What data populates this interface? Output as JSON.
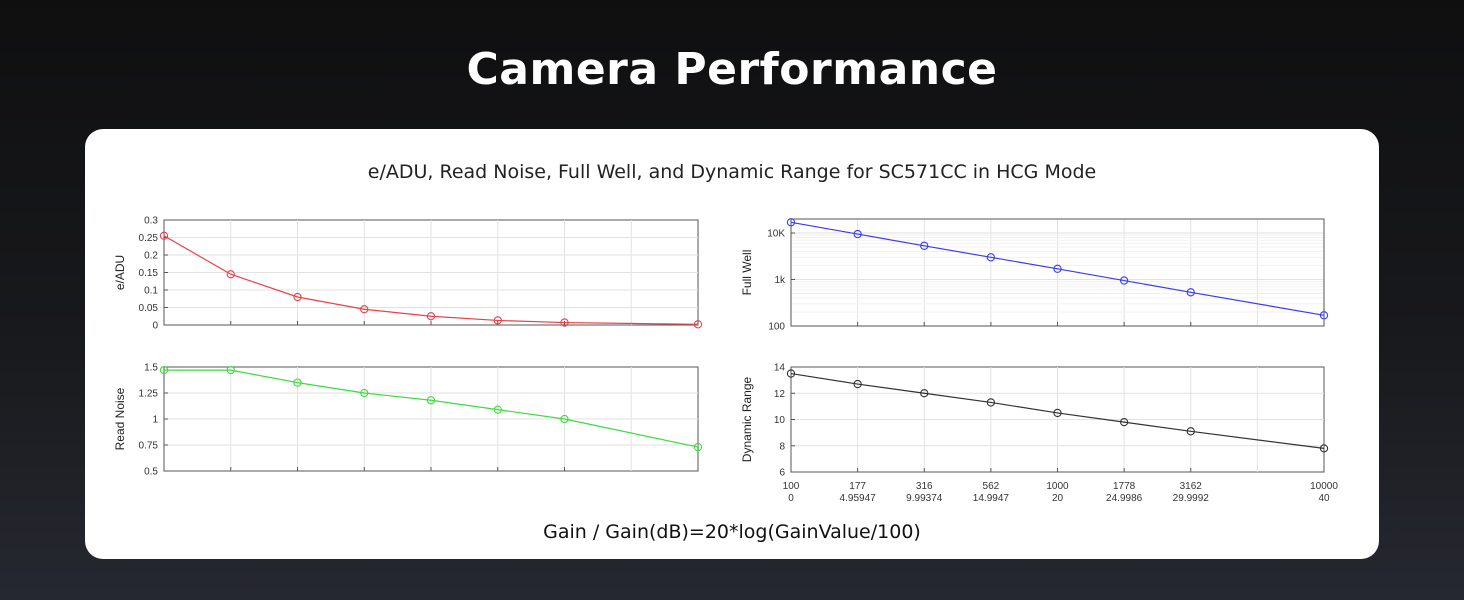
{
  "page": {
    "title": "Camera Performance"
  },
  "chart_data": {
    "title": "e/ADU, Read Noise, Full Well, and Dynamic Range for SC571CC in HCG Mode",
    "xlabel": "Gain / Gain(dB)=20*log(GainValue/100)",
    "x": [
      100,
      177,
      316,
      562,
      1000,
      1778,
      3162,
      10000
    ],
    "x_tick_labels": [
      "100",
      "177",
      "316",
      "562",
      "1000",
      "1778",
      "3162",
      "10000"
    ],
    "x_tick_labels_db": [
      "0",
      "4.95947",
      "9.99374",
      "14.9947",
      "20",
      "24.9986",
      "29.9992",
      "40"
    ],
    "charts": [
      {
        "id": "eadu",
        "type": "line",
        "ylabel": "e/ADU",
        "color": "#e8424a",
        "ylim": [
          0,
          0.3
        ],
        "yscale": "linear",
        "yticks": [
          0,
          0.05,
          0.1,
          0.15,
          0.2,
          0.25,
          0.3
        ],
        "ytick_labels": [
          "0",
          "0.05",
          "0.1",
          "0.15",
          "0.2",
          "0.25",
          "0.3"
        ],
        "values": [
          0.255,
          0.145,
          0.08,
          0.045,
          0.025,
          0.013,
          0.007,
          0.002
        ]
      },
      {
        "id": "fullwell",
        "type": "line",
        "ylabel": "Full Well",
        "color": "#3b3bf0",
        "ylim": [
          100,
          20000
        ],
        "yscale": "log",
        "yticks": [
          100,
          1000,
          10000
        ],
        "ytick_labels": [
          "100",
          "1k",
          "10K"
        ],
        "values": [
          17000,
          9500,
          5300,
          3000,
          1700,
          950,
          530,
          170
        ]
      },
      {
        "id": "readnoise",
        "type": "line",
        "ylabel": "Read Noise",
        "color": "#3ddc3d",
        "ylim": [
          0.5,
          1.5
        ],
        "yscale": "linear",
        "yticks": [
          0.5,
          0.75,
          1,
          1.25,
          1.5
        ],
        "ytick_labels": [
          "0.5",
          "0.75",
          "1",
          "1.25",
          "1.5"
        ],
        "values": [
          1.47,
          1.47,
          1.35,
          1.25,
          1.18,
          1.09,
          1.0,
          0.73
        ]
      },
      {
        "id": "dynrange",
        "type": "line",
        "ylabel": "Dynamic Range",
        "color": "#333333",
        "ylim": [
          6,
          14
        ],
        "yscale": "linear",
        "yticks": [
          6,
          8,
          10,
          12,
          14
        ],
        "ytick_labels": [
          "6",
          "8",
          "10",
          "12",
          "14"
        ],
        "values": [
          13.5,
          12.7,
          12.0,
          11.3,
          10.5,
          9.8,
          9.1,
          7.8
        ]
      }
    ]
  }
}
